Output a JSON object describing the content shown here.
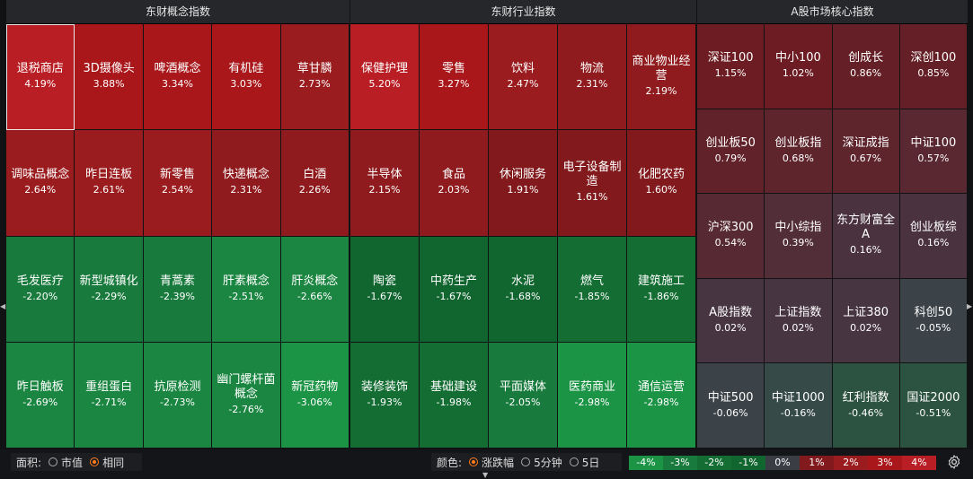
{
  "panels": [
    {
      "title": "东财概念指数",
      "cols": 5,
      "rows": 4,
      "tiles": [
        {
          "name": "退税商店",
          "pct": "4.19%",
          "color": "#b91e24",
          "selected": true
        },
        {
          "name": "3D摄像头",
          "pct": "3.88%",
          "color": "#a9171b"
        },
        {
          "name": "啤酒概念",
          "pct": "3.34%",
          "color": "#a9171b"
        },
        {
          "name": "有机硅",
          "pct": "3.03%",
          "color": "#a9171b"
        },
        {
          "name": "草甘膦",
          "pct": "2.73%",
          "color": "#9b1c1f"
        },
        {
          "name": "调味品概念",
          "pct": "2.64%",
          "color": "#9b1c1f"
        },
        {
          "name": "昨日连板",
          "pct": "2.61%",
          "color": "#9b1c1f"
        },
        {
          "name": "新零售",
          "pct": "2.54%",
          "color": "#9b1c1f"
        },
        {
          "name": "快递概念",
          "pct": "2.31%",
          "color": "#8f1b1e"
        },
        {
          "name": "白酒",
          "pct": "2.26%",
          "color": "#8f1b1e"
        },
        {
          "name": "毛发医疗",
          "pct": "-2.20%",
          "color": "#187a3c"
        },
        {
          "name": "新型城镇化",
          "pct": "-2.29%",
          "color": "#187a3c"
        },
        {
          "name": "青蒿素",
          "pct": "-2.39%",
          "color": "#187a3c"
        },
        {
          "name": "肝素概念",
          "pct": "-2.51%",
          "color": "#1a8641"
        },
        {
          "name": "肝炎概念",
          "pct": "-2.66%",
          "color": "#1a8641"
        },
        {
          "name": "昨日触板",
          "pct": "-2.69%",
          "color": "#1a8641"
        },
        {
          "name": "重组蛋白",
          "pct": "-2.71%",
          "color": "#1a8641"
        },
        {
          "name": "抗原检测",
          "pct": "-2.73%",
          "color": "#1a8641"
        },
        {
          "name": "幽门螺杆菌概念",
          "pct": "-2.76%",
          "color": "#1a8641"
        },
        {
          "name": "新冠药物",
          "pct": "-3.06%",
          "color": "#1c9446"
        }
      ]
    },
    {
      "title": "东财行业指数",
      "cols": 5,
      "rows": 4,
      "tiles": [
        {
          "name": "保健护理",
          "pct": "5.20%",
          "color": "#b91e24"
        },
        {
          "name": "零售",
          "pct": "3.27%",
          "color": "#a9171b"
        },
        {
          "name": "饮料",
          "pct": "2.47%",
          "color": "#9b1c1f"
        },
        {
          "name": "物流",
          "pct": "2.31%",
          "color": "#8f1b1e"
        },
        {
          "name": "商业物业经营",
          "pct": "2.19%",
          "color": "#8f1b1e"
        },
        {
          "name": "半导体",
          "pct": "2.15%",
          "color": "#8f1b1e"
        },
        {
          "name": "食品",
          "pct": "2.03%",
          "color": "#8f1b1e"
        },
        {
          "name": "休闲服务",
          "pct": "1.91%",
          "color": "#821a1d"
        },
        {
          "name": "电子设备制造",
          "pct": "1.61%",
          "color": "#821a1d"
        },
        {
          "name": "化肥农药",
          "pct": "1.60%",
          "color": "#821a1d"
        },
        {
          "name": "陶瓷",
          "pct": "-1.67%",
          "color": "#11652f"
        },
        {
          "name": "中药生产",
          "pct": "-1.67%",
          "color": "#11652f"
        },
        {
          "name": "水泥",
          "pct": "-1.68%",
          "color": "#11652f"
        },
        {
          "name": "燃气",
          "pct": "-1.85%",
          "color": "#146e34"
        },
        {
          "name": "建筑施工",
          "pct": "-1.86%",
          "color": "#146e34"
        },
        {
          "name": "装修装饰",
          "pct": "-1.93%",
          "color": "#146e34"
        },
        {
          "name": "基础建设",
          "pct": "-1.98%",
          "color": "#146e34"
        },
        {
          "name": "平面媒体",
          "pct": "-2.05%",
          "color": "#187a3c"
        },
        {
          "name": "医药商业",
          "pct": "-2.98%",
          "color": "#1c9446"
        },
        {
          "name": "通信运营",
          "pct": "-2.98%",
          "color": "#1c9446"
        }
      ]
    },
    {
      "title": "A股市场核心指数",
      "cols": 4,
      "rows": 5,
      "tiles": [
        {
          "name": "深证100",
          "pct": "1.15%",
          "color": "#6c1c22"
        },
        {
          "name": "中小100",
          "pct": "1.02%",
          "color": "#6c1c22"
        },
        {
          "name": "创成长",
          "pct": "0.86%",
          "color": "#651f26"
        },
        {
          "name": "深创100",
          "pct": "0.85%",
          "color": "#651f26"
        },
        {
          "name": "创业板50",
          "pct": "0.79%",
          "color": "#62222a"
        },
        {
          "name": "创业板指",
          "pct": "0.68%",
          "color": "#5e252d"
        },
        {
          "name": "深证成指",
          "pct": "0.67%",
          "color": "#5e252d"
        },
        {
          "name": "中证100",
          "pct": "0.57%",
          "color": "#5a2830"
        },
        {
          "name": "沪深300",
          "pct": "0.54%",
          "color": "#572a33"
        },
        {
          "name": "中小综指",
          "pct": "0.39%",
          "color": "#522e38"
        },
        {
          "name": "东方财富全A",
          "pct": "0.16%",
          "color": "#4a333f"
        },
        {
          "name": "创业板综",
          "pct": "0.16%",
          "color": "#4a333f"
        },
        {
          "name": "A股指数",
          "pct": "0.02%",
          "color": "#473542"
        },
        {
          "name": "上证指数",
          "pct": "0.02%",
          "color": "#473542"
        },
        {
          "name": "上证380",
          "pct": "0.02%",
          "color": "#473542"
        },
        {
          "name": "科创50",
          "pct": "-0.05%",
          "color": "#3b4248"
        },
        {
          "name": "中证500",
          "pct": "-0.06%",
          "color": "#3b4248"
        },
        {
          "name": "中证1000",
          "pct": "-0.16%",
          "color": "#364a48"
        },
        {
          "name": "红利指数",
          "pct": "-0.46%",
          "color": "#2c5241"
        },
        {
          "name": "国证2000",
          "pct": "-0.51%",
          "color": "#2c5241"
        }
      ]
    }
  ],
  "footer": {
    "area_label": "面积:",
    "area_options": [
      {
        "label": "市值",
        "on": false
      },
      {
        "label": "相同",
        "on": true
      }
    ],
    "color_label": "颜色:",
    "color_options": [
      {
        "label": "涨跌幅",
        "on": true
      },
      {
        "label": "5分钟",
        "on": false
      },
      {
        "label": "5日",
        "on": false
      }
    ],
    "legend": [
      {
        "label": "-4%",
        "color": "#1c9446"
      },
      {
        "label": "-3%",
        "color": "#187a3c"
      },
      {
        "label": "-2%",
        "color": "#146e34"
      },
      {
        "label": "-1%",
        "color": "#11652f"
      },
      {
        "label": "0%",
        "color": "#3a3d44"
      },
      {
        "label": "1%",
        "color": "#821a1d"
      },
      {
        "label": "2%",
        "color": "#9b1c1f"
      },
      {
        "label": "3%",
        "color": "#a9171b"
      },
      {
        "label": "4%",
        "color": "#b91e24"
      }
    ],
    "settings_icon": "gear-icon"
  }
}
